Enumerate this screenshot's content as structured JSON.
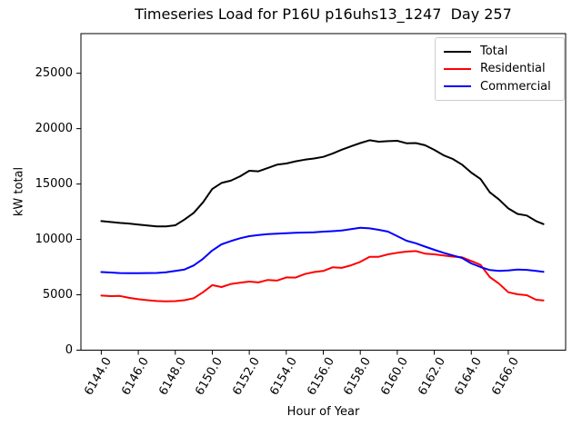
{
  "title": "Timeseries Load for P16U p16uhs13_1247  Day 257",
  "axes": {
    "xlabel": "Hour of Year",
    "ylabel": "kW total"
  },
  "legend": {
    "entries": [
      "Total",
      "Residential",
      "Commercial"
    ]
  },
  "colors": {
    "total": "#000000",
    "residential": "#ff0000",
    "commercial": "#0000ff",
    "legend_border": "#cccccc"
  },
  "chart_data": {
    "type": "line",
    "title": "Timeseries Load for P16U p16uhs13_1247  Day 257",
    "xlabel": "Hour of Year",
    "ylabel": "kW total",
    "grid": false,
    "legend_position": "upper right",
    "xlim": [
      6142.9,
      6169.1
    ],
    "ylim": [
      0,
      28580
    ],
    "x_ticks": [
      6144,
      6146,
      6148,
      6150,
      6152,
      6154,
      6156,
      6158,
      6160,
      6162,
      6164,
      6166
    ],
    "x_tick_labels": [
      "6144.0",
      "6146.0",
      "6148.0",
      "6150.0",
      "6152.0",
      "6154.0",
      "6156.0",
      "6158.0",
      "6160.0",
      "6162.0",
      "6164.0",
      "6166.0"
    ],
    "y_ticks": [
      0,
      5000,
      10000,
      15000,
      20000,
      25000
    ],
    "y_tick_labels": [
      "0",
      "5000",
      "10000",
      "15000",
      "20000",
      "25000"
    ],
    "x": [
      6144.0,
      6144.5,
      6145.0,
      6145.5,
      6146.0,
      6146.5,
      6147.0,
      6147.5,
      6148.0,
      6148.5,
      6149.0,
      6149.5,
      6150.0,
      6150.5,
      6151.0,
      6151.5,
      6152.0,
      6152.5,
      6153.0,
      6153.5,
      6154.0,
      6154.5,
      6155.0,
      6155.5,
      6156.0,
      6156.5,
      6157.0,
      6157.5,
      6158.0,
      6158.5,
      6159.0,
      6159.5,
      6160.0,
      6160.5,
      6161.0,
      6161.5,
      6162.0,
      6162.5,
      6163.0,
      6163.5,
      6164.0,
      6164.5,
      6165.0,
      6165.5,
      6166.0,
      6166.5,
      6167.0,
      6167.5,
      6167.9
    ],
    "series": [
      {
        "name": "Total",
        "color": "#000000",
        "values": [
          11650,
          11570,
          11490,
          11430,
          11330,
          11250,
          11170,
          11170,
          11280,
          11790,
          12400,
          13350,
          14550,
          15100,
          15300,
          15700,
          16200,
          16150,
          16450,
          16750,
          16850,
          17050,
          17200,
          17300,
          17450,
          17750,
          18100,
          18400,
          18700,
          18950,
          18820,
          18870,
          18900,
          18680,
          18700,
          18500,
          18080,
          17600,
          17260,
          16750,
          16030,
          15450,
          14250,
          13600,
          12800,
          12300,
          12150,
          11650,
          11380
        ]
      },
      {
        "name": "Residential",
        "color": "#ff0000",
        "values": [
          4930,
          4880,
          4900,
          4720,
          4600,
          4510,
          4440,
          4410,
          4430,
          4510,
          4690,
          5230,
          5870,
          5700,
          5970,
          6090,
          6190,
          6120,
          6340,
          6280,
          6570,
          6550,
          6870,
          7050,
          7150,
          7480,
          7430,
          7660,
          7970,
          8430,
          8430,
          8650,
          8790,
          8900,
          8950,
          8720,
          8650,
          8550,
          8450,
          8380,
          8050,
          7700,
          6600,
          6000,
          5230,
          5040,
          4960,
          4550,
          4490
        ]
      },
      {
        "name": "Commercial",
        "color": "#0000ff",
        "values": [
          7050,
          7010,
          6960,
          6950,
          6950,
          6960,
          6970,
          7030,
          7160,
          7280,
          7650,
          8250,
          9000,
          9550,
          9850,
          10100,
          10290,
          10400,
          10470,
          10510,
          10560,
          10600,
          10620,
          10640,
          10700,
          10740,
          10800,
          10930,
          11050,
          11000,
          10870,
          10700,
          10290,
          9880,
          9650,
          9350,
          9060,
          8790,
          8550,
          8320,
          7830,
          7500,
          7230,
          7150,
          7200,
          7280,
          7250,
          7150,
          7070
        ]
      }
    ]
  }
}
